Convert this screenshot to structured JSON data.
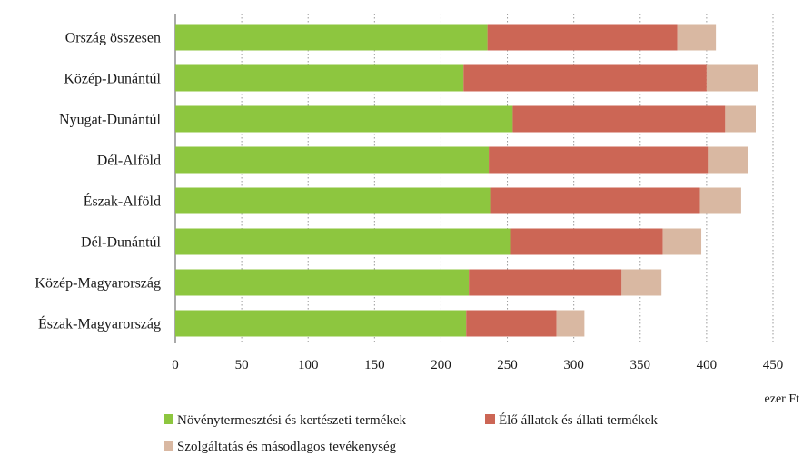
{
  "chart_data": {
    "type": "bar",
    "orientation": "horizontal",
    "stacked": true,
    "categories": [
      "Ország összesen",
      "Közép-Dunántúl",
      "Nyugat-Dunántúl",
      "Dél-Alföld",
      "Észak-Alföld",
      "Dél-Dunántúl",
      "Közép-Magyarország",
      "Észak-Magyarország"
    ],
    "series": [
      {
        "name": "Növénytermesztési és kertészeti termékek",
        "color": "#8dc63f",
        "values": [
          235,
          217,
          254,
          236,
          237,
          252,
          221,
          219
        ]
      },
      {
        "name": "Élő állatok és állati termékek",
        "color": "#cc6655",
        "values": [
          143,
          183,
          160,
          165,
          158,
          115,
          115,
          68
        ]
      },
      {
        "name": "Szolgáltatás és másodlagos tevékenység",
        "color": "#d9b8a2",
        "values": [
          29,
          39,
          23,
          30,
          31,
          29,
          30,
          21
        ]
      }
    ],
    "xlim": [
      0,
      450
    ],
    "xticks": [
      0,
      50,
      100,
      150,
      200,
      250,
      300,
      350,
      400,
      450
    ],
    "unit_label": "ezer Ft",
    "grid": true,
    "legend_position": "bottom"
  }
}
